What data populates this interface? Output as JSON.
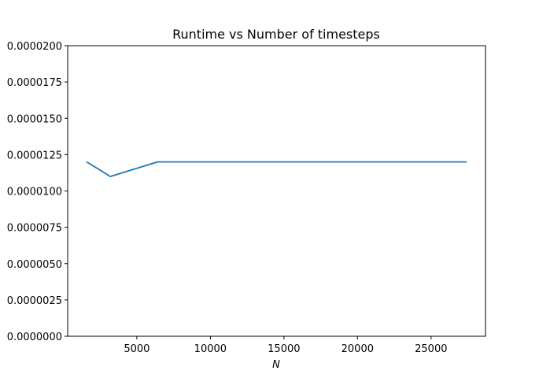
{
  "chart_data": {
    "type": "line",
    "title": "Runtime vs Number of timesteps",
    "xlabel": "N",
    "ylabel": "",
    "xlim": [
      300,
      28700
    ],
    "ylim": [
      0,
      2e-05
    ],
    "xticks": [
      5000,
      10000,
      15000,
      20000,
      25000
    ],
    "xtick_labels": [
      "5000",
      "10000",
      "15000",
      "20000",
      "25000"
    ],
    "yticks": [
      0,
      2.5e-06,
      5e-06,
      7.5e-06,
      1e-05,
      1.25e-05,
      1.5e-05,
      1.75e-05,
      2e-05
    ],
    "ytick_labels": [
      "0.0000000",
      "0.0000025",
      "0.0000050",
      "0.0000075",
      "0.0000100",
      "0.0000125",
      "0.0000150",
      "0.0000175",
      "0.0000200"
    ],
    "grid": false,
    "legend": "none",
    "series": [
      {
        "color": "#1f77b4",
        "x": [
          1600,
          3200,
          6400,
          12800,
          25600,
          27400
        ],
        "y": [
          1.2e-05,
          1.1e-05,
          1.2e-05,
          1.2e-05,
          1.2e-05,
          1.2e-05
        ]
      }
    ]
  }
}
